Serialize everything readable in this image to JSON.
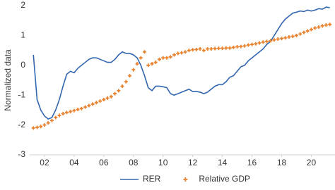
{
  "chart_data": {
    "type": "line",
    "y_label": "Normalized data",
    "x": [
      1.25,
      1.5,
      1.75,
      2,
      2.25,
      2.5,
      2.75,
      3,
      3.25,
      3.5,
      3.75,
      4,
      4.25,
      4.5,
      4.75,
      5,
      5.25,
      5.5,
      5.75,
      6,
      6.25,
      6.5,
      6.75,
      7,
      7.25,
      7.5,
      7.75,
      8,
      8.25,
      8.5,
      8.75,
      9,
      9.25,
      9.5,
      9.75,
      10,
      10.25,
      10.5,
      10.75,
      11,
      11.25,
      11.5,
      11.75,
      12,
      12.25,
      12.5,
      12.75,
      13,
      13.25,
      13.5,
      13.75,
      14,
      14.25,
      14.5,
      14.75,
      15,
      15.25,
      15.5,
      15.75,
      16,
      16.25,
      16.5,
      16.75,
      17,
      17.25,
      17.5,
      17.75,
      18,
      18.25,
      18.5,
      18.75,
      19,
      19.25,
      19.5,
      19.75,
      20,
      20.25,
      20.5,
      20.75,
      21,
      21.25
    ],
    "series": [
      {
        "name": "RER",
        "color": "#3366b0",
        "style": "line",
        "values": [
          0.35,
          -1.15,
          -1.5,
          -1.7,
          -1.8,
          -1.75,
          -1.5,
          -1.15,
          -0.7,
          -0.3,
          -0.2,
          -0.25,
          -0.1,
          0,
          0.1,
          0.2,
          0.25,
          0.25,
          0.2,
          0.15,
          0.1,
          0.1,
          0.2,
          0.35,
          0.45,
          0.4,
          0.4,
          0.35,
          0.25,
          0,
          -0.35,
          -0.75,
          -0.85,
          -0.7,
          -0.7,
          -0.72,
          -0.75,
          -0.95,
          -1,
          -0.95,
          -0.9,
          -0.85,
          -0.8,
          -0.88,
          -0.88,
          -0.9,
          -0.95,
          -0.9,
          -0.8,
          -0.7,
          -0.65,
          -0.65,
          -0.55,
          -0.4,
          -0.35,
          -0.2,
          -0.05,
          0,
          0.15,
          0.25,
          0.35,
          0.45,
          0.55,
          0.7,
          0.8,
          1,
          1.2,
          1.4,
          1.55,
          1.65,
          1.75,
          1.78,
          1.82,
          1.8,
          1.85,
          1.82,
          1.85,
          1.9,
          1.88,
          1.95,
          1.93
        ]
      },
      {
        "name": "Relative GDP",
        "color": "#e8822e",
        "style": "markers",
        "values": [
          -2.1,
          -2.08,
          -2.05,
          -2,
          -1.93,
          -1.85,
          -1.75,
          -1.68,
          -1.62,
          -1.58,
          -1.55,
          -1.52,
          -1.48,
          -1.45,
          -1.4,
          -1.35,
          -1.3,
          -1.25,
          -1.2,
          -1.15,
          -1.1,
          -1.05,
          -0.95,
          -0.85,
          -0.7,
          -0.55,
          -0.35,
          -0.15,
          0.05,
          0.25,
          0.45,
          0,
          0.05,
          0.1,
          0.2,
          0.25,
          0.25,
          0.28,
          0.35,
          0.4,
          0.42,
          0.45,
          0.5,
          0.52,
          0.53,
          0.55,
          0.5,
          0.55,
          0.55,
          0.56,
          0.57,
          0.57,
          0.58,
          0.58,
          0.6,
          0.62,
          0.63,
          0.65,
          0.68,
          0.7,
          0.72,
          0.75,
          0.78,
          0.8,
          0.82,
          0.85,
          0.88,
          0.9,
          0.92,
          0.95,
          0.97,
          1,
          1.05,
          1.1,
          1.15,
          1.2,
          1.25,
          1.28,
          1.32,
          1.35,
          1.37
        ]
      }
    ],
    "xlim": [
      1,
      21.6
    ],
    "xticks": [
      {
        "value": 2,
        "label": "02"
      },
      {
        "value": 4,
        "label": "04"
      },
      {
        "value": 6,
        "label": "06"
      },
      {
        "value": 8,
        "label": "08"
      },
      10,
      12,
      14,
      16,
      18,
      20
    ],
    "ylim": [
      -3,
      2
    ],
    "yticks": [
      -3,
      -2,
      -1,
      0,
      1,
      2
    ],
    "grid": false,
    "legend": "bottom"
  }
}
